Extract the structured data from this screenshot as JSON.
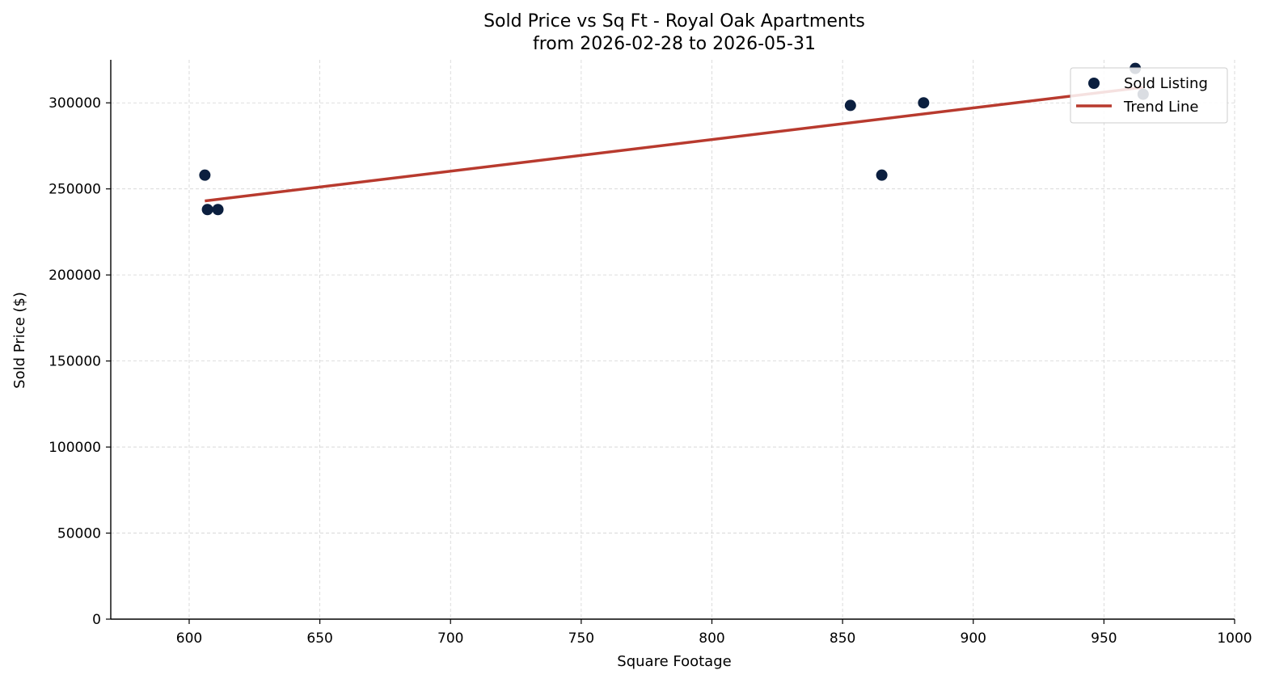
{
  "chart_data": {
    "type": "scatter",
    "title": [
      "Sold Price vs Sq Ft - Royal Oak Apartments",
      "from 2026-02-28 to 2026-05-31"
    ],
    "xlabel": "Square Footage",
    "ylabel": "Sold Price ($)",
    "xlim": [
      570,
      1000
    ],
    "ylim": [
      0,
      325000
    ],
    "xticks": [
      600,
      650,
      700,
      750,
      800,
      850,
      900,
      950,
      1000
    ],
    "yticks": [
      0,
      50000,
      100000,
      150000,
      200000,
      250000,
      300000
    ],
    "grid": true,
    "legend_position": "top-right",
    "series": [
      {
        "name": "Sold Listing",
        "kind": "scatter",
        "color": "#0b1f3f",
        "x": [
          606,
          607,
          611,
          853,
          865,
          881,
          962,
          965
        ],
        "y": [
          258000,
          238000,
          238000,
          298500,
          258000,
          300000,
          320000,
          305000
        ]
      },
      {
        "name": "Trend Line",
        "kind": "line",
        "color": "#b83a2e",
        "x": [
          606,
          965
        ],
        "y": [
          243000,
          309000
        ]
      }
    ]
  }
}
